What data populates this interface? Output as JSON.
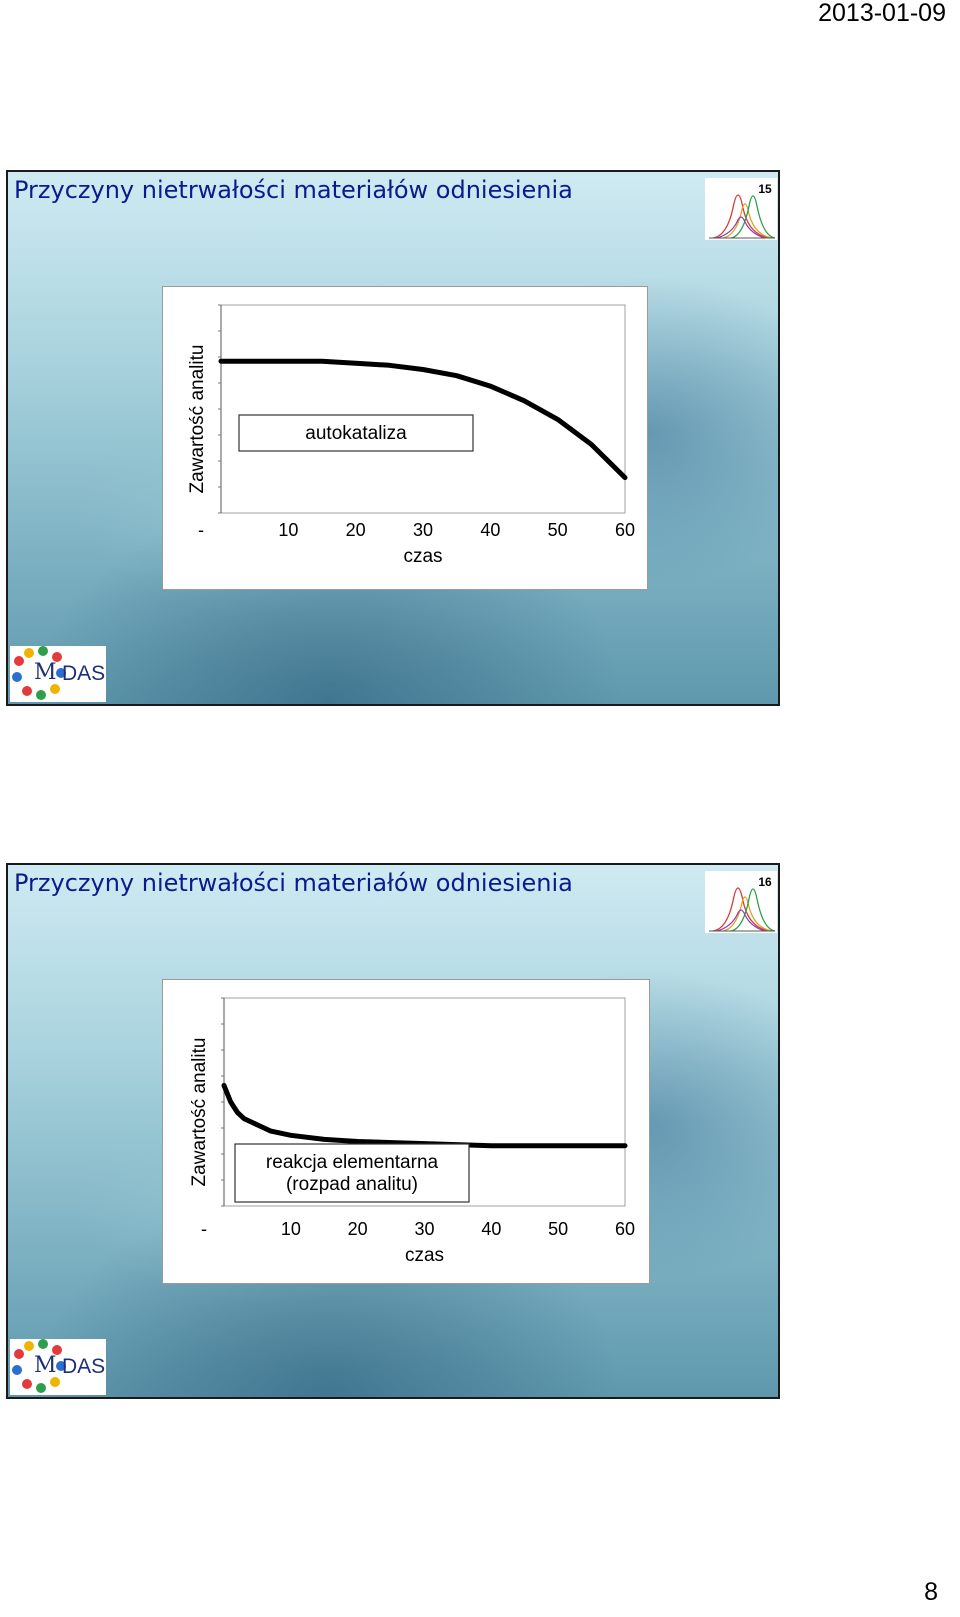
{
  "page": {
    "date": "2013-01-09",
    "number": "8"
  },
  "slides": [
    {
      "title": "Przyczyny nietrwałości materiałów odniesienia",
      "slide_number": "15",
      "logo_text": {
        "m": "M",
        "das": "DAS"
      }
    },
    {
      "title": "Przyczyny nietrwałości materiałów odniesienia",
      "slide_number": "16",
      "logo_text": {
        "m": "M",
        "das": "DAS"
      }
    }
  ],
  "colors": {
    "title": "#0b1a8c",
    "logo": "#1e2f7a",
    "curve": "#000000"
  },
  "icons": {
    "peaks": "gaussian-peaks-icon"
  },
  "chart_data": [
    {
      "type": "line",
      "title": "",
      "annotation": "autokataliza",
      "xlabel": "czas",
      "ylabel": "Zawartość analitu",
      "x_tick_labels": [
        "-",
        "10",
        "20",
        "30",
        "40",
        "50",
        "60"
      ],
      "xlim": [
        0,
        60
      ],
      "ylim": [
        0,
        1
      ],
      "grid": false,
      "series": [
        {
          "x": [
            0,
            5,
            10,
            15,
            20,
            25,
            30,
            35,
            40,
            45,
            50,
            55,
            60
          ],
          "values": [
            0.73,
            0.73,
            0.73,
            0.73,
            0.72,
            0.71,
            0.69,
            0.66,
            0.61,
            0.54,
            0.45,
            0.33,
            0.17
          ]
        }
      ]
    },
    {
      "type": "line",
      "title": "",
      "annotation": "reakcja elementarna\n(rozpad analitu)",
      "xlabel": "czas",
      "ylabel": "Zawartość analitu",
      "x_tick_labels": [
        "-",
        "10",
        "20",
        "30",
        "40",
        "50",
        "60"
      ],
      "xlim": [
        0,
        60
      ],
      "ylim": [
        0,
        1
      ],
      "grid": false,
      "series": [
        {
          "x": [
            0,
            1,
            2,
            3,
            5,
            7,
            10,
            15,
            20,
            30,
            40,
            50,
            60
          ],
          "values": [
            0.58,
            0.5,
            0.45,
            0.42,
            0.39,
            0.36,
            0.34,
            0.32,
            0.31,
            0.3,
            0.29,
            0.29,
            0.29
          ]
        }
      ]
    }
  ]
}
